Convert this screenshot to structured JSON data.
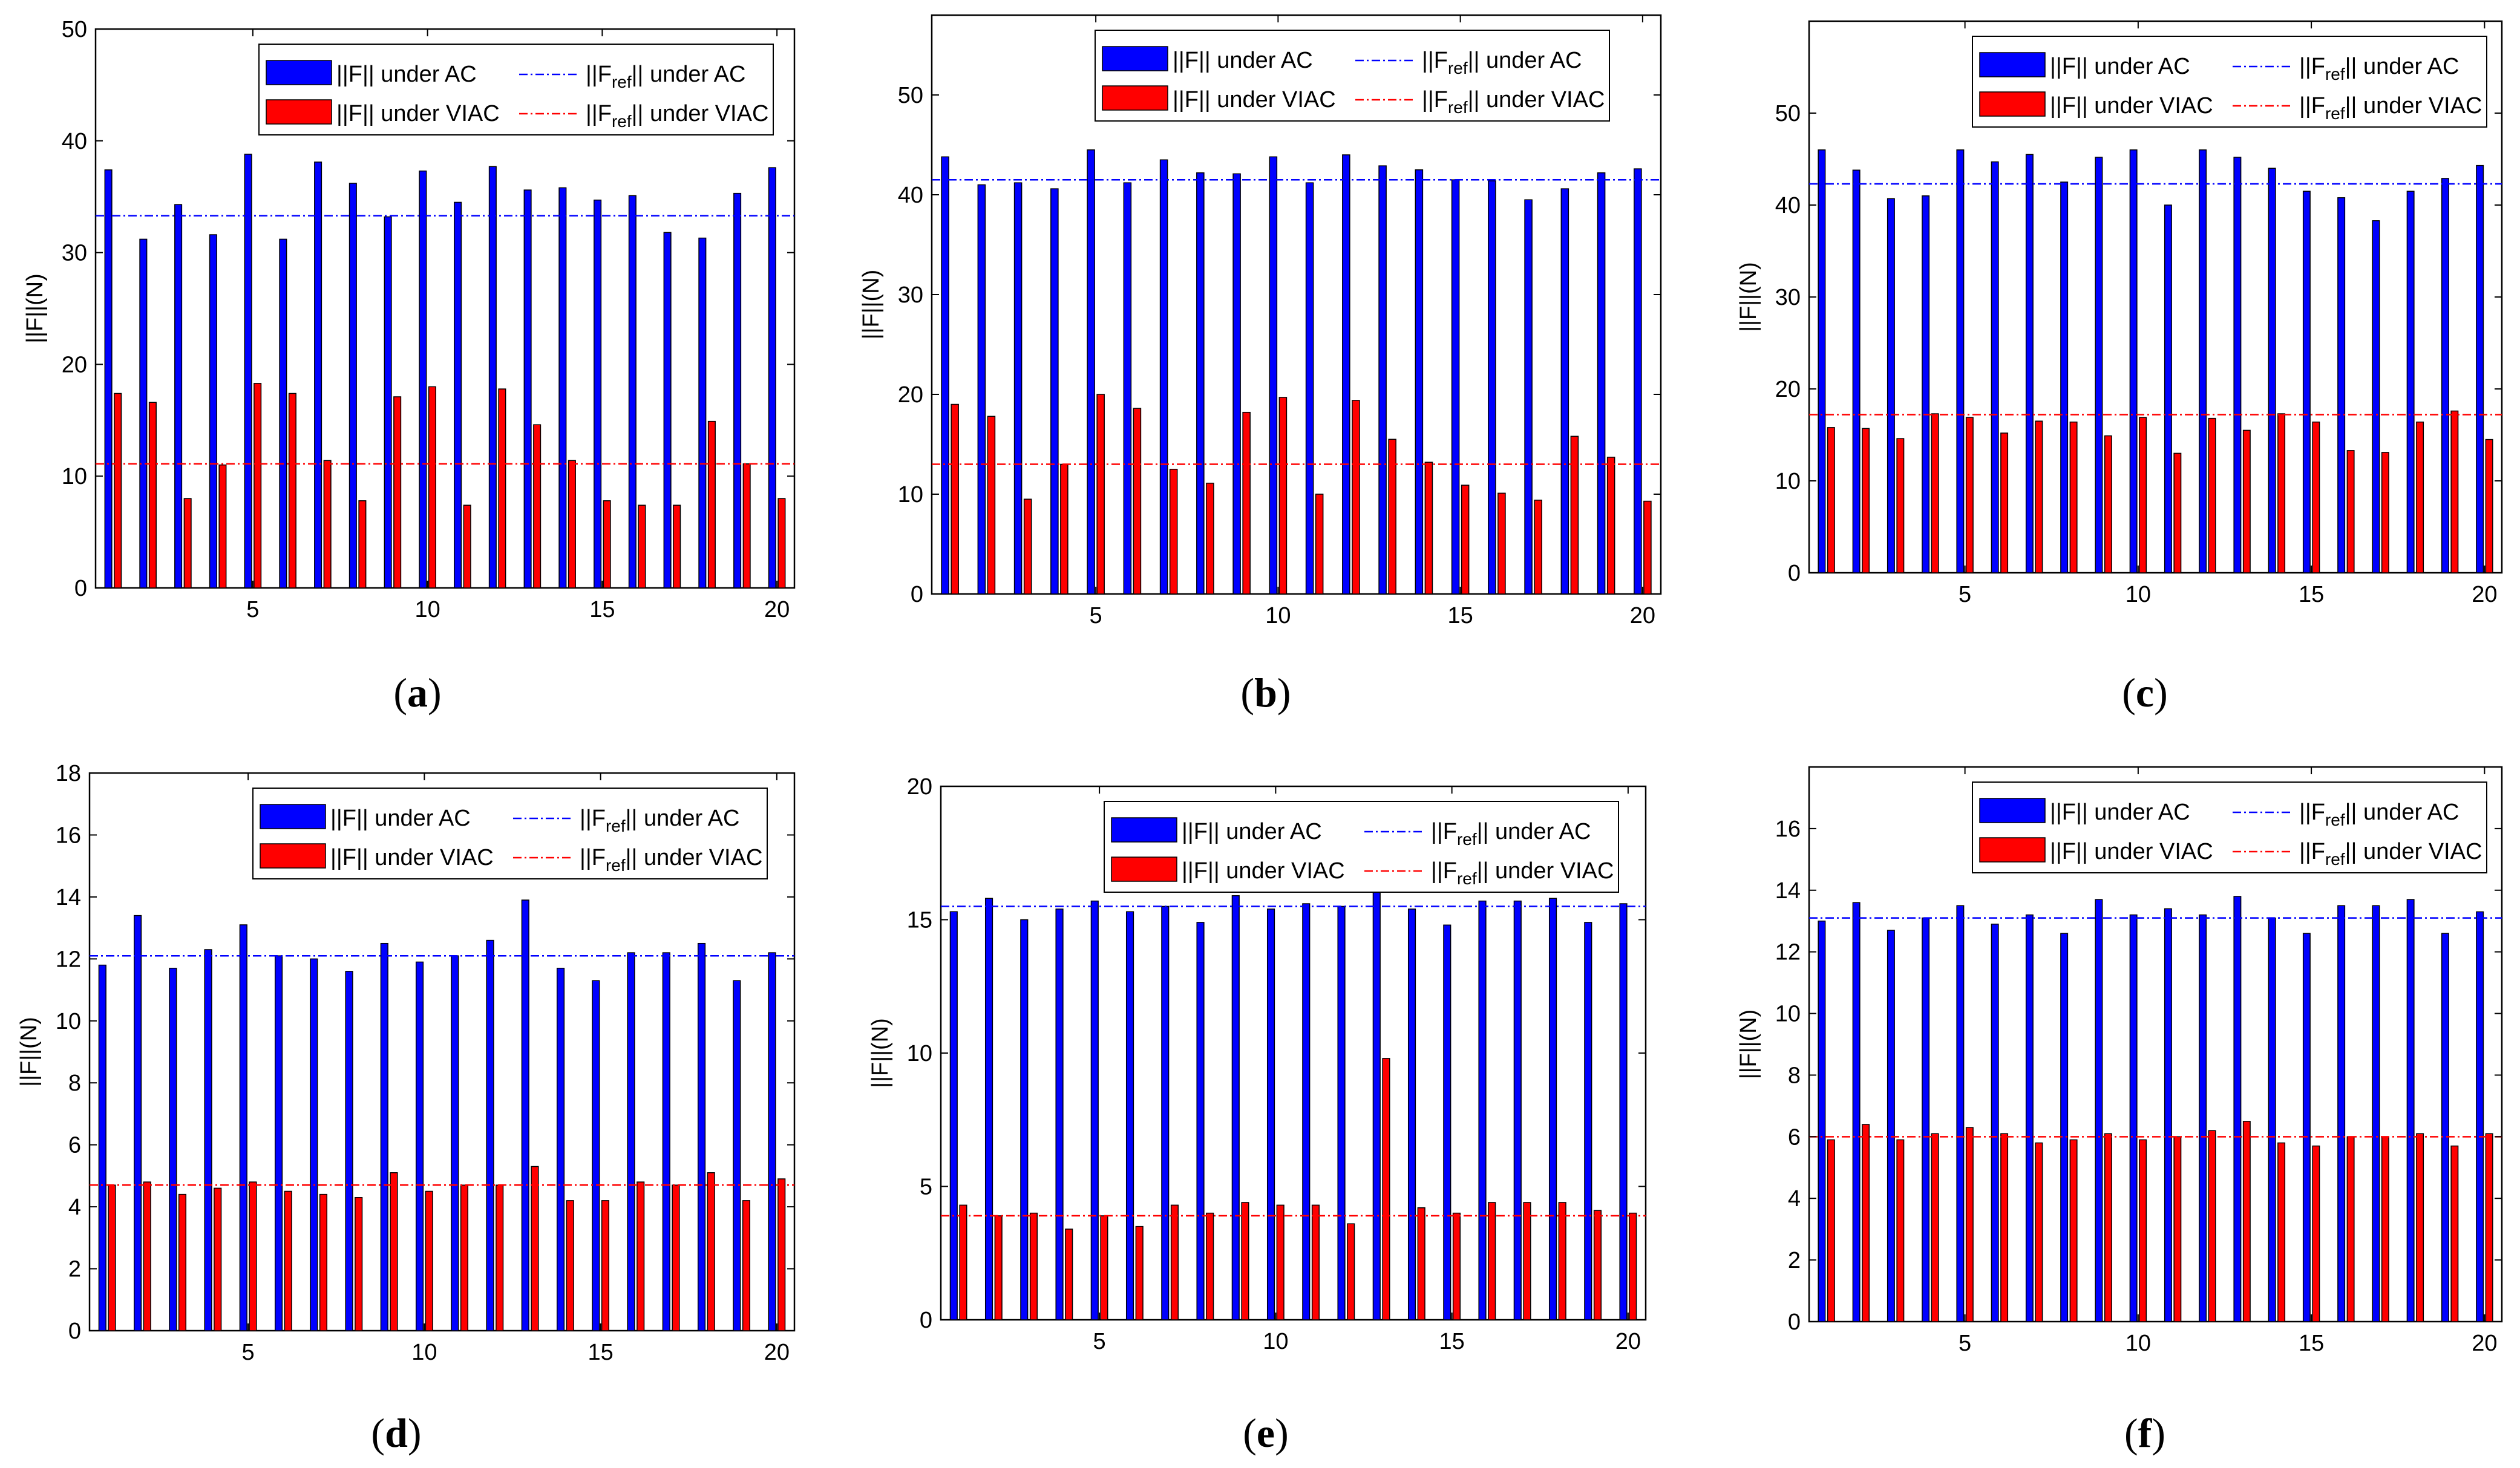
{
  "colors": {
    "ac": "#0000ff",
    "viac": "#ff0000",
    "axis": "#000000",
    "barEdge": "#000000"
  },
  "chart_data": [
    {
      "panel": "a",
      "type": "bar",
      "categories": [
        1,
        2,
        3,
        4,
        5,
        6,
        7,
        8,
        9,
        10,
        11,
        12,
        13,
        14,
        15,
        16,
        17,
        18,
        19,
        20
      ],
      "xticks": [
        "5",
        "10",
        "15",
        "20"
      ],
      "ylim": [
        0,
        50
      ],
      "yticks": [
        "0",
        "10",
        "20",
        "30",
        "40",
        "50"
      ],
      "ylabel": "||F||(N)",
      "series": [
        {
          "name": "||F|| under AC",
          "values": [
            37.4,
            31.2,
            34.3,
            31.6,
            38.8,
            31.2,
            38.1,
            36.2,
            33.2,
            37.3,
            34.5,
            37.7,
            35.6,
            35.8,
            34.7,
            35.1,
            31.8,
            31.3,
            35.3,
            37.6
          ]
        },
        {
          "name": "||F|| under VIAC",
          "values": [
            17.4,
            16.6,
            8.0,
            11.0,
            18.3,
            17.4,
            11.4,
            7.8,
            17.1,
            18.0,
            7.4,
            17.8,
            14.6,
            11.4,
            7.8,
            7.4,
            7.4,
            14.9,
            11.1,
            8.0
          ]
        }
      ],
      "ref": [
        {
          "name_prefix": "||F",
          "name_sub": "ref",
          "name_suffix": "|| under AC",
          "value": 33.3
        },
        {
          "name_prefix": "||F",
          "name_sub": "ref",
          "name_suffix": "|| under VIAC",
          "value": 11.1
        }
      ],
      "label_a": "(",
      "label_b": "a",
      "label_c": ")"
    },
    {
      "panel": "b",
      "type": "bar",
      "categories": [
        1,
        2,
        3,
        4,
        5,
        6,
        7,
        8,
        9,
        10,
        11,
        12,
        13,
        14,
        15,
        16,
        17,
        18,
        19,
        20
      ],
      "xticks": [
        "5",
        "10",
        "15",
        "20"
      ],
      "ylim": [
        0,
        58
      ],
      "yticks": [
        "0",
        "10",
        "20",
        "30",
        "40",
        "50"
      ],
      "ylabel": "||F||(N)",
      "series": [
        {
          "name": "||F|| under AC",
          "values": [
            43.8,
            41.0,
            41.2,
            40.6,
            44.5,
            41.2,
            43.5,
            42.2,
            42.1,
            43.8,
            41.2,
            44.0,
            42.9,
            42.5,
            41.5,
            41.4,
            39.5,
            40.6,
            42.2,
            42.6
          ]
        },
        {
          "name": "||F|| under VIAC",
          "values": [
            19.0,
            17.8,
            9.5,
            13.0,
            20.0,
            18.6,
            12.5,
            11.1,
            18.2,
            19.7,
            10.0,
            19.4,
            15.5,
            13.2,
            10.9,
            10.1,
            9.4,
            15.8,
            13.7,
            9.3
          ]
        }
      ],
      "ref": [
        {
          "name_prefix": "||F",
          "name_sub": "ref",
          "name_suffix": "|| under AC",
          "value": 41.5
        },
        {
          "name_prefix": "||F",
          "name_sub": "ref",
          "name_suffix": "|| under VIAC",
          "value": 13.0
        }
      ],
      "label_a": "(",
      "label_b": "b",
      "label_c": ")"
    },
    {
      "panel": "c",
      "type": "bar",
      "categories": [
        1,
        2,
        3,
        4,
        5,
        6,
        7,
        8,
        9,
        10,
        11,
        12,
        13,
        14,
        15,
        16,
        17,
        18,
        19,
        20
      ],
      "xticks": [
        "5",
        "10",
        "15",
        "20"
      ],
      "ylim": [
        0,
        60
      ],
      "yticks": [
        "0",
        "10",
        "20",
        "30",
        "40",
        "50"
      ],
      "ylabel": "||F||(N)",
      "series": [
        {
          "name": "||F|| under AC",
          "values": [
            46.0,
            43.8,
            40.7,
            41.0,
            46.0,
            44.7,
            45.5,
            42.5,
            45.2,
            46.0,
            40.0,
            46.0,
            45.2,
            44.0,
            41.5,
            40.8,
            38.3,
            41.5,
            42.9,
            44.3
          ]
        },
        {
          "name": "||F|| under VIAC",
          "values": [
            15.8,
            15.7,
            14.6,
            17.3,
            16.9,
            15.2,
            16.5,
            16.4,
            14.9,
            16.9,
            13.0,
            16.8,
            15.5,
            17.3,
            16.4,
            13.3,
            13.1,
            16.4,
            17.6,
            14.5
          ]
        }
      ],
      "ref": [
        {
          "name_prefix": "||F",
          "name_sub": "ref",
          "name_suffix": "|| under AC",
          "value": 42.3
        },
        {
          "name_prefix": "||F",
          "name_sub": "ref",
          "name_suffix": "|| under VIAC",
          "value": 17.2
        }
      ],
      "label_a": "(",
      "label_b": "c",
      "label_c": ")"
    },
    {
      "panel": "d",
      "type": "bar",
      "categories": [
        1,
        2,
        3,
        4,
        5,
        6,
        7,
        8,
        9,
        10,
        11,
        12,
        13,
        14,
        15,
        16,
        17,
        18,
        19,
        20
      ],
      "xticks": [
        "5",
        "10",
        "15",
        "20"
      ],
      "ylim": [
        0,
        18
      ],
      "yticks": [
        "0",
        "2",
        "4",
        "6",
        "8",
        "10",
        "12",
        "14",
        "16",
        "18"
      ],
      "ylabel": "||F||(N)",
      "series": [
        {
          "name": "||F|| under AC",
          "values": [
            11.8,
            13.4,
            11.7,
            12.3,
            13.1,
            12.1,
            12.0,
            11.6,
            12.5,
            11.9,
            12.1,
            12.6,
            13.9,
            11.7,
            11.3,
            12.2,
            12.2,
            12.5,
            11.3,
            12.2
          ]
        },
        {
          "name": "||F|| under VIAC",
          "values": [
            4.7,
            4.8,
            4.4,
            4.6,
            4.8,
            4.5,
            4.4,
            4.3,
            5.1,
            4.5,
            4.7,
            4.7,
            5.3,
            4.2,
            4.2,
            4.8,
            4.7,
            5.1,
            4.2,
            4.9
          ]
        }
      ],
      "ref": [
        {
          "name_prefix": "||F",
          "name_sub": "ref",
          "name_suffix": "|| under AC",
          "value": 12.1
        },
        {
          "name_prefix": "||F",
          "name_sub": "ref",
          "name_suffix": "|| under VIAC",
          "value": 4.7
        }
      ],
      "label_a": "(",
      "label_b": "d",
      "label_c": ")"
    },
    {
      "panel": "e",
      "type": "bar",
      "categories": [
        1,
        2,
        3,
        4,
        5,
        6,
        7,
        8,
        9,
        10,
        11,
        12,
        13,
        14,
        15,
        16,
        17,
        18,
        19,
        20
      ],
      "xticks": [
        "5",
        "10",
        "15",
        "20"
      ],
      "ylim": [
        0,
        20
      ],
      "yticks": [
        "0",
        "5",
        "10",
        "15",
        "20"
      ],
      "ylabel": "||F||(N)",
      "series": [
        {
          "name": "||F|| under AC",
          "values": [
            15.3,
            15.8,
            15.0,
            15.4,
            15.7,
            15.3,
            15.5,
            14.9,
            15.9,
            15.4,
            15.6,
            15.5,
            16.2,
            15.4,
            14.8,
            15.7,
            15.7,
            15.8,
            14.9,
            15.6
          ]
        },
        {
          "name": "||F|| under VIAC",
          "values": [
            4.3,
            3.9,
            4.0,
            3.4,
            3.9,
            3.5,
            4.3,
            4.0,
            4.4,
            4.3,
            4.3,
            3.6,
            9.8,
            4.2,
            4.0,
            4.4,
            4.4,
            4.4,
            4.1,
            4.0
          ]
        }
      ],
      "ref": [
        {
          "name_prefix": "||F",
          "name_sub": "ref",
          "name_suffix": "|| under AC",
          "value": 15.5
        },
        {
          "name_prefix": "||F",
          "name_sub": "ref",
          "name_suffix": "|| under VIAC",
          "value": 3.9
        }
      ],
      "label_a": "(",
      "label_b": "e",
      "label_c": ")"
    },
    {
      "panel": "f",
      "type": "bar",
      "categories": [
        1,
        2,
        3,
        4,
        5,
        6,
        7,
        8,
        9,
        10,
        11,
        12,
        13,
        14,
        15,
        16,
        17,
        18,
        19,
        20
      ],
      "xticks": [
        "5",
        "10",
        "15",
        "20"
      ],
      "ylim": [
        0,
        18
      ],
      "yticks": [
        "0",
        "2",
        "4",
        "6",
        "8",
        "10",
        "12",
        "14",
        "16"
      ],
      "ylabel": "||F||(N)",
      "series": [
        {
          "name": "||F|| under AC",
          "values": [
            13.0,
            13.6,
            12.7,
            13.1,
            13.5,
            12.9,
            13.2,
            12.6,
            13.7,
            13.2,
            13.4,
            13.2,
            13.8,
            13.1,
            12.6,
            13.5,
            13.5,
            13.7,
            12.6,
            13.3
          ]
        },
        {
          "name": "||F|| under VIAC",
          "values": [
            5.9,
            6.4,
            5.9,
            6.1,
            6.3,
            6.1,
            5.8,
            5.9,
            6.1,
            5.9,
            6.0,
            6.2,
            6.5,
            5.8,
            5.7,
            6.0,
            6.0,
            6.1,
            5.7,
            6.1
          ]
        }
      ],
      "ref": [
        {
          "name_prefix": "||F",
          "name_sub": "ref",
          "name_suffix": "|| under AC",
          "value": 13.1
        },
        {
          "name_prefix": "||F",
          "name_sub": "ref",
          "name_suffix": "|| under VIAC",
          "value": 6.0
        }
      ],
      "label_a": "(",
      "label_b": "f",
      "label_c": ")"
    }
  ]
}
